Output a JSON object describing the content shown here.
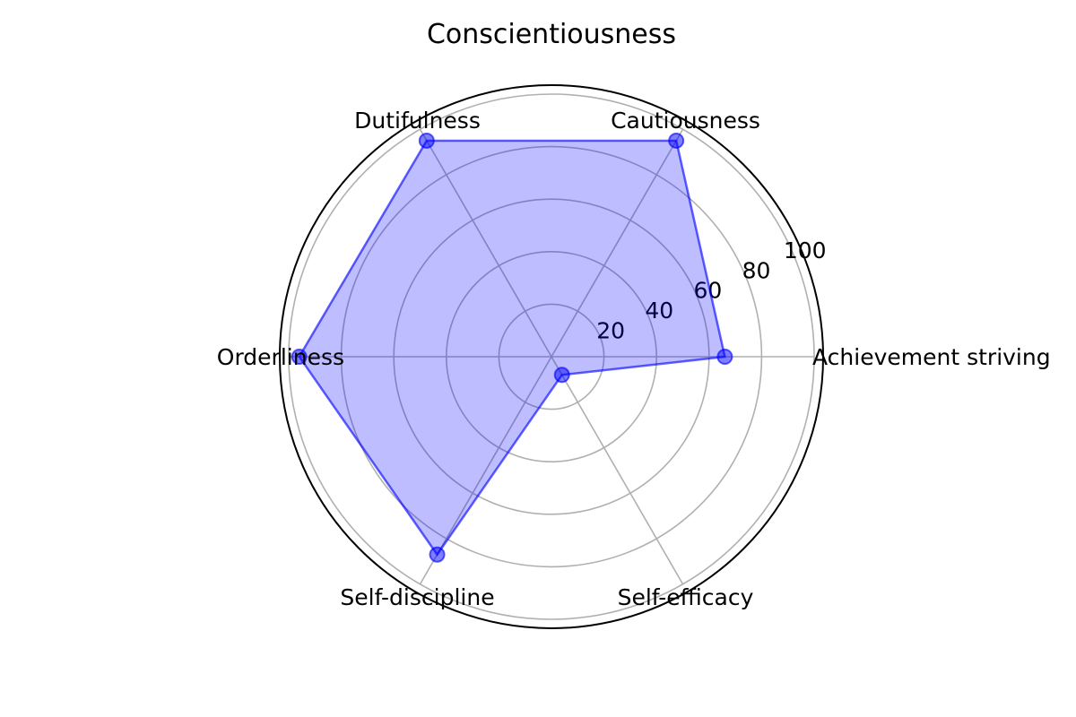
{
  "chart_data": {
    "type": "radar",
    "title": "Conscientiousness",
    "categories": [
      "Achievement striving",
      "Cautiousness",
      "Dutifulness",
      "Orderliness",
      "Self-discipline",
      "Self-efficacy"
    ],
    "series": [
      {
        "values": [
          66,
          95,
          95,
          96,
          87,
          8
        ]
      }
    ],
    "rlim": [
      0,
      100
    ],
    "rticks": [
      20,
      40,
      60,
      80,
      100
    ],
    "grid": true,
    "colors": {
      "line": "#0000ff",
      "fill": "#0000ff",
      "frame": "#000000",
      "grid": "#b0b0b0"
    }
  }
}
